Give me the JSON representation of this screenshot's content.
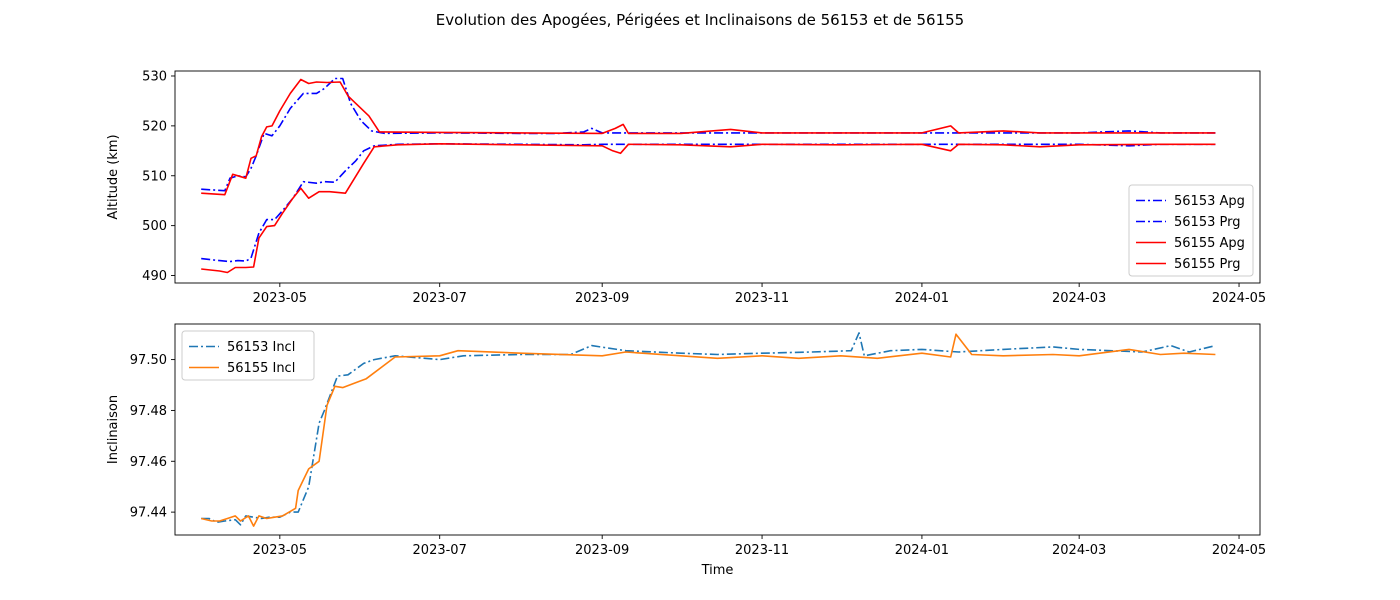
{
  "figure_title": "Evolution des Apogées, Périgées et Inclinaisons de 56153 et de 56155",
  "chart_data": [
    {
      "type": "line",
      "xlabel": "",
      "ylabel": "Altitude (km)",
      "xlim": [
        "2023-03-22",
        "2024-05-09"
      ],
      "ylim": [
        488.5,
        531
      ],
      "yticks": [
        490,
        500,
        510,
        520,
        530
      ],
      "xticks": [
        "2023-05",
        "2023-07",
        "2023-09",
        "2023-11",
        "2024-01",
        "2024-03",
        "2024-05"
      ],
      "legend": "lower-right",
      "series": [
        {
          "name": "56153 Apg",
          "color": "#0000ff",
          "style": "dashdot",
          "x": [
            "2023-04-01",
            "2023-04-10",
            "2023-04-12",
            "2023-04-15",
            "2023-04-18",
            "2023-04-20",
            "2023-04-22",
            "2023-04-25",
            "2023-04-28",
            "2023-05-01",
            "2023-05-05",
            "2023-05-10",
            "2023-05-15",
            "2023-05-18",
            "2023-05-22",
            "2023-05-25",
            "2023-05-28",
            "2023-06-01",
            "2023-06-05",
            "2023-06-10",
            "2023-07-01",
            "2023-08-01",
            "2023-08-15",
            "2023-08-25",
            "2023-08-28",
            "2023-09-01",
            "2023-10-01",
            "2023-11-01",
            "2023-12-01",
            "2024-01-01",
            "2024-02-01",
            "2024-03-01",
            "2024-03-20",
            "2024-04-01",
            "2024-04-22"
          ],
          "values": [
            507.3,
            507.0,
            509.5,
            510.0,
            509.8,
            511.5,
            514.0,
            518.5,
            518.0,
            520.0,
            523.5,
            526.5,
            526.5,
            527.5,
            529.5,
            529.5,
            524.5,
            521.0,
            519.0,
            518.5,
            518.6,
            518.5,
            518.5,
            518.8,
            519.5,
            518.6,
            518.6,
            518.6,
            518.6,
            518.6,
            518.6,
            518.6,
            519.0,
            518.6,
            518.6
          ]
        },
        {
          "name": "56153 Prg",
          "color": "#0000ff",
          "style": "dashdot",
          "x": [
            "2023-04-01",
            "2023-04-08",
            "2023-04-12",
            "2023-04-15",
            "2023-04-18",
            "2023-04-20",
            "2023-04-23",
            "2023-04-26",
            "2023-04-29",
            "2023-05-02",
            "2023-05-06",
            "2023-05-10",
            "2023-05-15",
            "2023-05-18",
            "2023-05-22",
            "2023-05-26",
            "2023-05-30",
            "2023-06-02",
            "2023-06-06",
            "2023-06-15",
            "2023-07-01",
            "2023-08-01",
            "2023-08-25",
            "2023-09-01",
            "2023-10-01",
            "2023-11-01",
            "2023-12-01",
            "2024-01-01",
            "2024-02-01",
            "2024-03-01",
            "2024-03-20",
            "2024-04-01",
            "2024-04-22"
          ],
          "values": [
            493.4,
            493.0,
            492.8,
            493.0,
            492.9,
            493.5,
            498.5,
            501.2,
            501.2,
            503.0,
            505.5,
            508.8,
            508.5,
            508.8,
            508.7,
            511.0,
            513.0,
            515.0,
            516.0,
            516.3,
            516.4,
            516.3,
            516.2,
            516.3,
            516.3,
            516.3,
            516.3,
            516.3,
            516.3,
            516.3,
            516.0,
            516.3,
            516.3
          ]
        },
        {
          "name": "56155 Apg",
          "color": "#ff0000",
          "style": "solid",
          "x": [
            "2023-04-01",
            "2023-04-10",
            "2023-04-13",
            "2023-04-15",
            "2023-04-18",
            "2023-04-20",
            "2023-04-22",
            "2023-04-24",
            "2023-04-26",
            "2023-04-28",
            "2023-05-01",
            "2023-05-05",
            "2023-05-09",
            "2023-05-12",
            "2023-05-15",
            "2023-05-19",
            "2023-05-24",
            "2023-05-27",
            "2023-05-30",
            "2023-06-04",
            "2023-06-08",
            "2023-07-01",
            "2023-08-01",
            "2023-09-01",
            "2023-09-06",
            "2023-09-09",
            "2023-09-11",
            "2023-10-01",
            "2023-10-20",
            "2023-11-01",
            "2023-12-01",
            "2024-01-01",
            "2024-01-12",
            "2024-01-15",
            "2024-02-01",
            "2024-02-15",
            "2024-03-01",
            "2024-04-01",
            "2024-04-22"
          ],
          "values": [
            506.5,
            506.2,
            510.3,
            510.0,
            509.5,
            513.5,
            514.0,
            517.8,
            519.8,
            520.0,
            523.0,
            526.5,
            529.3,
            528.5,
            528.8,
            528.7,
            528.8,
            526.0,
            524.5,
            522.0,
            518.8,
            518.7,
            518.6,
            518.5,
            519.5,
            520.3,
            518.5,
            518.5,
            519.3,
            518.6,
            518.6,
            518.6,
            520.0,
            518.6,
            519.0,
            518.6,
            518.6,
            518.6,
            518.6
          ]
        },
        {
          "name": "56155 Prg",
          "color": "#ff0000",
          "style": "solid",
          "x": [
            "2023-04-01",
            "2023-04-08",
            "2023-04-11",
            "2023-04-14",
            "2023-04-18",
            "2023-04-21",
            "2023-04-23",
            "2023-04-26",
            "2023-04-29",
            "2023-05-02",
            "2023-05-06",
            "2023-05-09",
            "2023-05-12",
            "2023-05-16",
            "2023-05-20",
            "2023-05-26",
            "2023-06-02",
            "2023-06-06",
            "2023-06-15",
            "2023-07-01",
            "2023-08-01",
            "2023-09-01",
            "2023-09-05",
            "2023-09-08",
            "2023-09-11",
            "2023-10-01",
            "2023-10-20",
            "2023-11-01",
            "2023-12-01",
            "2024-01-01",
            "2024-01-12",
            "2024-01-15",
            "2024-02-01",
            "2024-02-15",
            "2024-03-01",
            "2024-04-01",
            "2024-04-22"
          ],
          "values": [
            491.3,
            490.9,
            490.6,
            491.6,
            491.6,
            491.7,
            497.5,
            499.8,
            500.0,
            502.5,
            505.5,
            507.5,
            505.5,
            506.8,
            506.8,
            506.5,
            512.5,
            515.8,
            516.2,
            516.4,
            516.2,
            516.0,
            515.0,
            514.5,
            516.3,
            516.2,
            515.8,
            516.3,
            516.2,
            516.3,
            515.0,
            516.3,
            516.2,
            515.8,
            516.2,
            516.3,
            516.3
          ]
        }
      ]
    },
    {
      "type": "line",
      "xlabel": "Time",
      "ylabel": "Inclinaison",
      "xlim": [
        "2023-03-22",
        "2024-05-09"
      ],
      "ylim": [
        97.431,
        97.514
      ],
      "yticks": [
        97.44,
        97.46,
        97.48,
        97.5
      ],
      "xticks": [
        "2023-05",
        "2023-07",
        "2023-09",
        "2023-11",
        "2024-01",
        "2024-03",
        "2024-05"
      ],
      "legend": "upper-left",
      "series": [
        {
          "name": "56153 Incl",
          "color": "#1f77b4",
          "style": "dashdot",
          "x": [
            "2023-04-01",
            "2023-04-04",
            "2023-04-07",
            "2023-04-10",
            "2023-04-14",
            "2023-04-16",
            "2023-04-18",
            "2023-04-21",
            "2023-04-24",
            "2023-04-27",
            "2023-05-01",
            "2023-05-05",
            "2023-05-08",
            "2023-05-12",
            "2023-05-16",
            "2023-05-18",
            "2023-05-23",
            "2023-05-27",
            "2023-06-02",
            "2023-06-06",
            "2023-06-14",
            "2023-07-01",
            "2023-07-10",
            "2023-08-01",
            "2023-08-20",
            "2023-08-28",
            "2023-09-10",
            "2023-10-01",
            "2023-10-15",
            "2023-11-01",
            "2023-11-20",
            "2023-12-05",
            "2023-12-08",
            "2023-12-10",
            "2023-12-20",
            "2024-01-01",
            "2024-01-15",
            "2024-02-01",
            "2024-02-20",
            "2024-03-01",
            "2024-03-25",
            "2024-04-05",
            "2024-04-12",
            "2024-04-22"
          ],
          "values": [
            97.4375,
            97.4375,
            97.436,
            97.4365,
            97.437,
            97.435,
            97.4385,
            97.438,
            97.4375,
            97.438,
            97.438,
            97.44,
            97.44,
            97.45,
            97.475,
            97.48,
            97.4935,
            97.494,
            97.4985,
            97.5,
            97.5015,
            97.5,
            97.5015,
            97.502,
            97.502,
            97.5055,
            97.5035,
            97.5025,
            97.502,
            97.5025,
            97.503,
            97.5035,
            97.5105,
            97.5015,
            97.5035,
            97.504,
            97.503,
            97.504,
            97.505,
            97.504,
            97.503,
            97.5055,
            97.503,
            97.5055
          ]
        },
        {
          "name": "56155 Incl",
          "color": "#ff7f0e",
          "style": "solid",
          "x": [
            "2023-04-01",
            "2023-04-05",
            "2023-04-08",
            "2023-04-11",
            "2023-04-14",
            "2023-04-16",
            "2023-04-19",
            "2023-04-21",
            "2023-04-23",
            "2023-04-26",
            "2023-04-29",
            "2023-05-02",
            "2023-05-07",
            "2023-05-08",
            "2023-05-12",
            "2023-05-16",
            "2023-05-19",
            "2023-05-22",
            "2023-05-25",
            "2023-06-03",
            "2023-06-14",
            "2023-07-01",
            "2023-07-08",
            "2023-08-01",
            "2023-09-01",
            "2023-09-10",
            "2023-10-01",
            "2023-10-15",
            "2023-11-01",
            "2023-11-15",
            "2023-12-01",
            "2023-12-15",
            "2024-01-01",
            "2024-01-12",
            "2024-01-14",
            "2024-01-20",
            "2024-02-01",
            "2024-02-20",
            "2024-03-01",
            "2024-03-20",
            "2024-04-01",
            "2024-04-10",
            "2024-04-22"
          ],
          "values": [
            97.4375,
            97.4365,
            97.4365,
            97.4375,
            97.4385,
            97.4365,
            97.4385,
            97.4345,
            97.4385,
            97.4375,
            97.438,
            97.4385,
            97.4415,
            97.4485,
            97.457,
            97.46,
            97.482,
            97.4895,
            97.489,
            97.4925,
            97.501,
            97.5015,
            97.5035,
            97.5025,
            97.5015,
            97.503,
            97.5015,
            97.5005,
            97.5015,
            97.5005,
            97.5015,
            97.5005,
            97.5025,
            97.501,
            97.51,
            97.502,
            97.5015,
            97.502,
            97.5015,
            97.504,
            97.502,
            97.5025,
            97.502
          ]
        }
      ]
    }
  ]
}
